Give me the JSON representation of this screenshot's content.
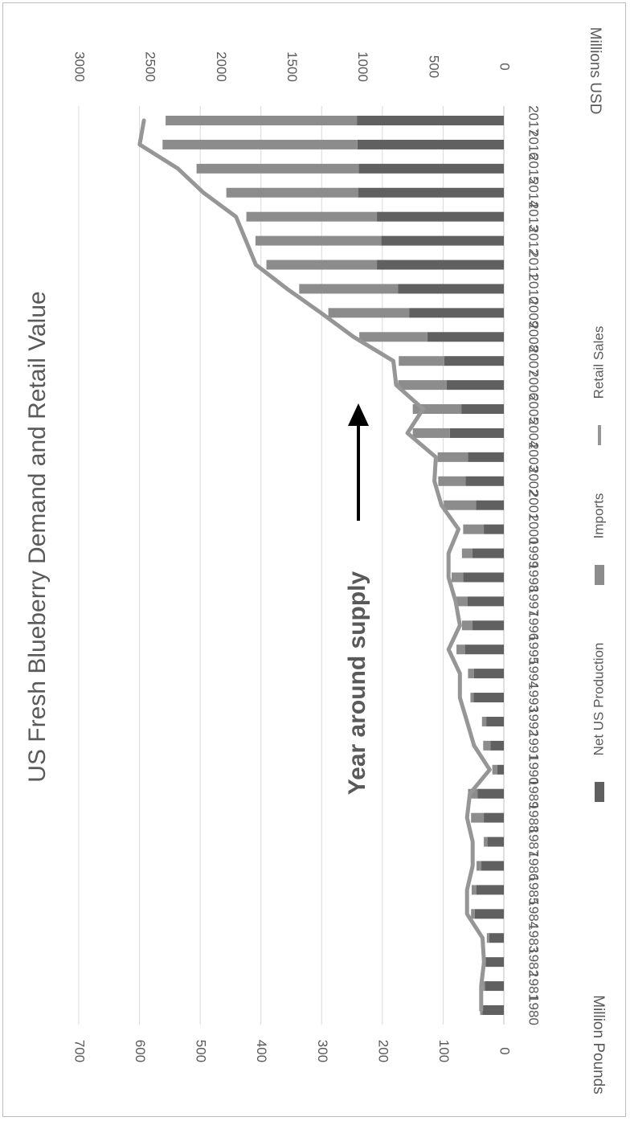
{
  "chart_data": {
    "type": "bar",
    "orientation": "horizontal",
    "stacked": true,
    "image_rotation": "rotated 90 degrees clockwise",
    "title": "US Fresh Blueberry Demand and Retail Value",
    "left_axis_label": "Million Pounds",
    "right_axis_label": "Millions USD",
    "left_axis": {
      "range": [
        0,
        700
      ],
      "ticks": [
        "0",
        "100",
        "200",
        "300",
        "400",
        "500",
        "600",
        "700"
      ]
    },
    "right_axis": {
      "range": [
        0,
        3000
      ],
      "ticks": [
        "0",
        "500",
        "1000",
        "1500",
        "2000",
        "2500",
        "3000"
      ]
    },
    "grid": true,
    "legend_position": "bottom",
    "annotation": "Year around supply",
    "categories": [
      "1980",
      "1981",
      "1982",
      "1983",
      "1984",
      "1985",
      "1986",
      "1987",
      "1988",
      "1989",
      "1990",
      "1991",
      "1992",
      "1993",
      "1994",
      "1995",
      "1996",
      "1997",
      "1998",
      "1999",
      "2000",
      "2001",
      "2002",
      "2003",
      "2004",
      "2005",
      "2006",
      "2007",
      "2008",
      "2009",
      "2010",
      "2011",
      "2012",
      "2013",
      "2014",
      "2015",
      "2016",
      "2017"
    ],
    "series": [
      {
        "name": "Net US Production",
        "type": "bar",
        "axis": "left",
        "color": "#606060",
        "values": [
          35,
          31,
          30,
          24,
          48,
          45,
          37,
          27,
          33,
          43,
          11,
          22,
          29,
          50,
          49,
          64,
          52,
          60,
          67,
          52,
          33,
          46,
          63,
          59,
          89,
          70,
          94,
          98,
          126,
          156,
          174,
          209,
          202,
          209,
          240,
          239,
          241,
          242
        ]
      },
      {
        "name": "Imports",
        "type": "bar",
        "axis": "left",
        "color": "#8c8c8c",
        "values": [
          4,
          3,
          3,
          4,
          6,
          8,
          8,
          6,
          21,
          16,
          8,
          12,
          7,
          5,
          10,
          14,
          17,
          18,
          19,
          17,
          34,
          53,
          45,
          50,
          61,
          80,
          80,
          75,
          112,
          133,
          163,
          182,
          207,
          215,
          217,
          267,
          321,
          315
        ]
      },
      {
        "name": "Retail Sales",
        "type": "line",
        "axis": "right",
        "color": "#969696",
        "values": [
          160,
          160,
          140,
          150,
          260,
          260,
          220,
          220,
          260,
          240,
          100,
          210,
          260,
          310,
          310,
          390,
          310,
          340,
          390,
          390,
          320,
          440,
          490,
          480,
          680,
          570,
          760,
          780,
          1060,
          1290,
          1530,
          1750,
          1820,
          1890,
          2120,
          2300,
          2570,
          2540
        ]
      }
    ]
  }
}
